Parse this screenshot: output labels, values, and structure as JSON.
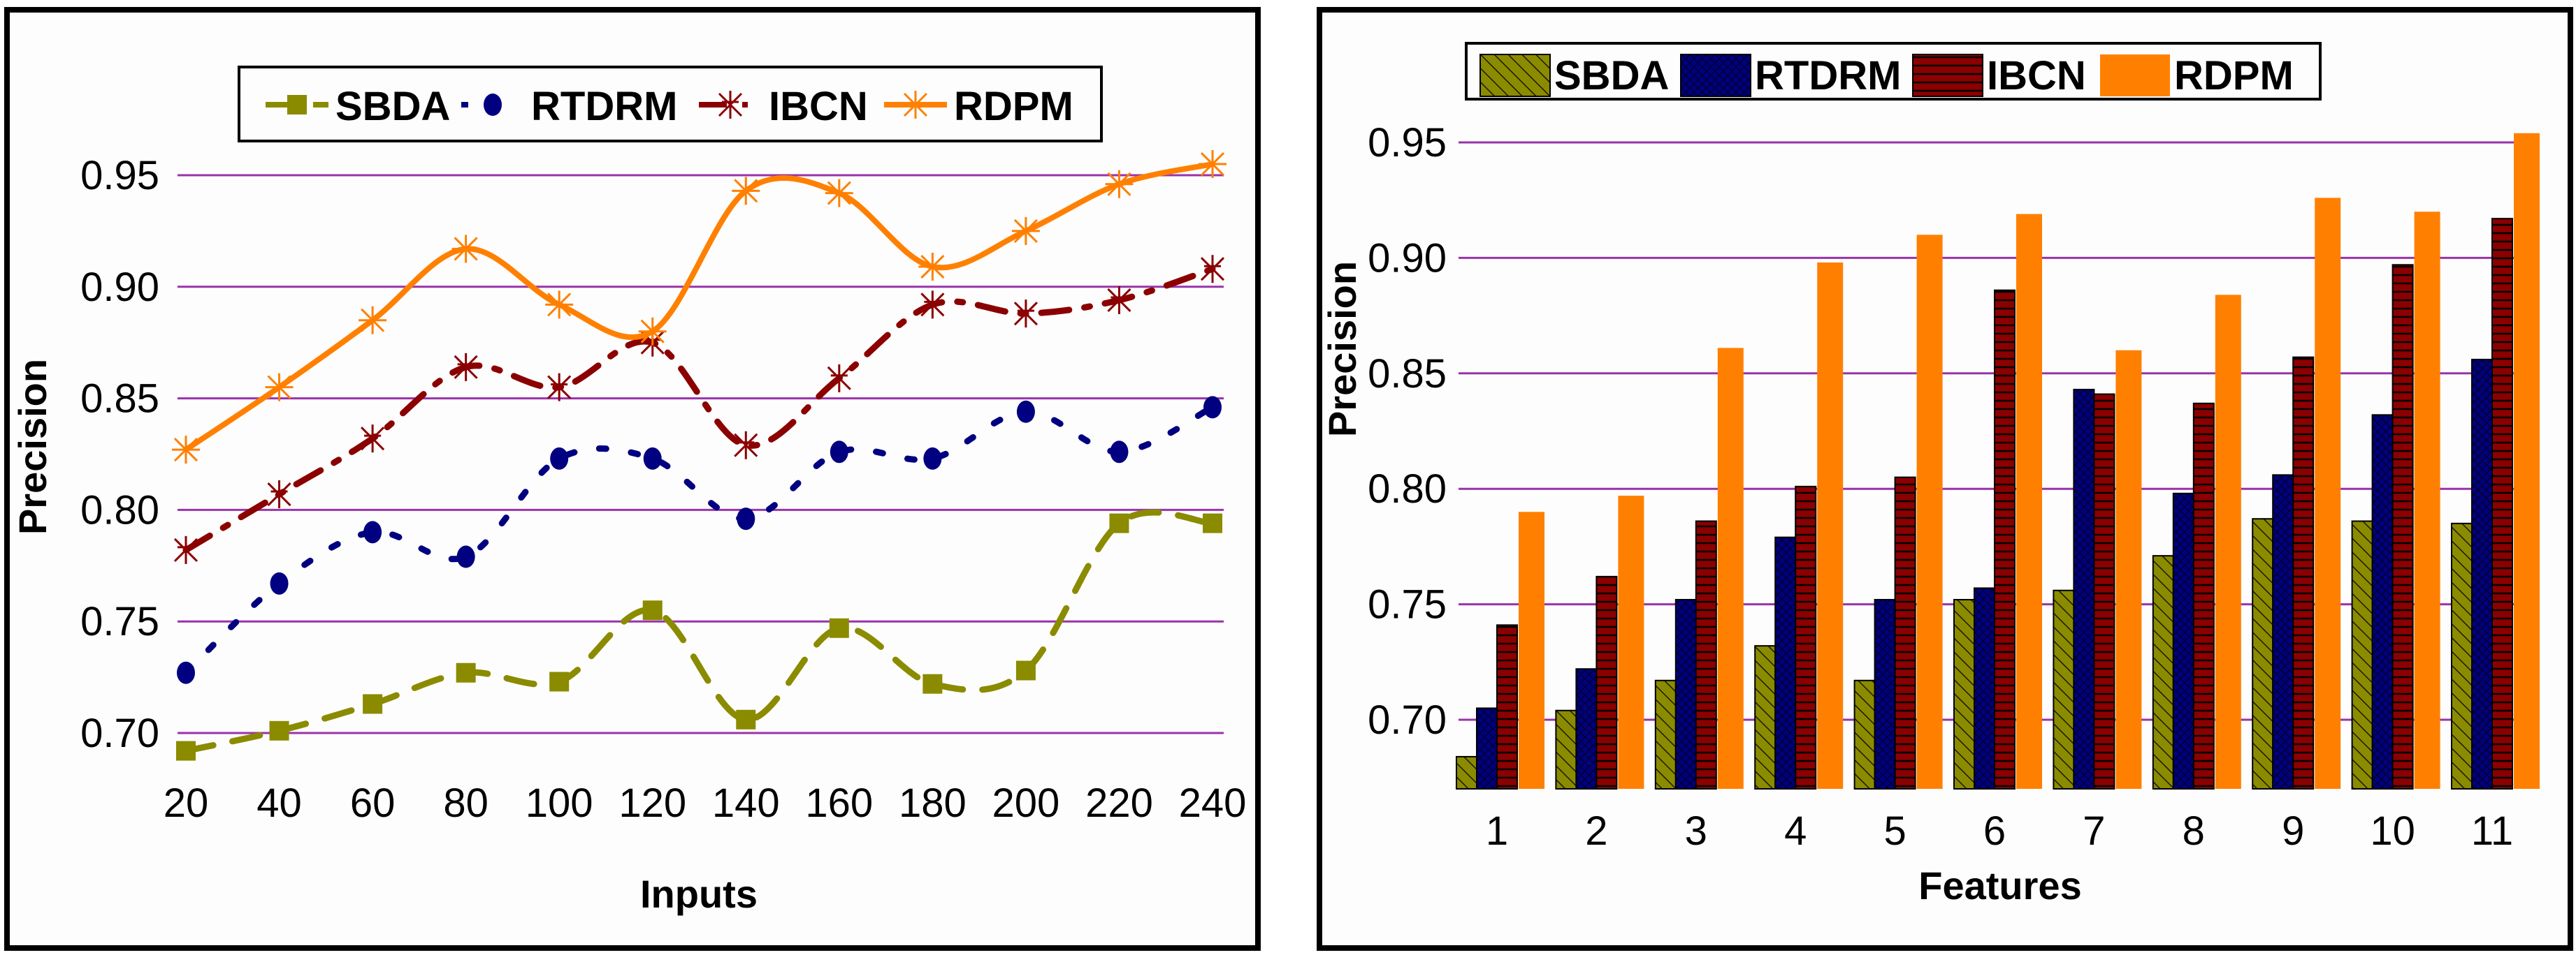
{
  "chart_data": [
    {
      "type": "line",
      "title": "",
      "xlabel": "Inputs",
      "ylabel": "Precision",
      "x": [
        20,
        40,
        60,
        80,
        100,
        120,
        140,
        160,
        180,
        200,
        220,
        240
      ],
      "x_tick_labels": [
        "20",
        "40",
        "60",
        "80",
        "100",
        "120",
        "140",
        "160",
        "180",
        "200",
        "220",
        "240"
      ],
      "ylim": [
        0.7,
        0.95
      ],
      "y_ticks": [
        0.7,
        0.75,
        0.8,
        0.85,
        0.9,
        0.95
      ],
      "y_tick_labels": [
        "0.70",
        "0.75",
        "0.80",
        "0.85",
        "0.90",
        "0.95"
      ],
      "grid": "horizontal",
      "legend_position": "top",
      "series": [
        {
          "name": "SBDA",
          "color": "#8B8B00",
          "marker": "square",
          "line": "dashed",
          "values": [
            0.692,
            0.701,
            0.713,
            0.727,
            0.723,
            0.755,
            0.706,
            0.747,
            0.722,
            0.728,
            0.794,
            0.794
          ]
        },
        {
          "name": "RTDRM",
          "color": "#000080",
          "marker": "circle",
          "line": "dotted",
          "values": [
            0.727,
            0.767,
            0.79,
            0.779,
            0.823,
            0.823,
            0.796,
            0.826,
            0.823,
            0.844,
            0.826,
            0.846
          ]
        },
        {
          "name": "IBCN",
          "color": "#8B0000",
          "marker": "cross-star",
          "line": "dash-dot",
          "values": [
            0.782,
            0.807,
            0.832,
            0.864,
            0.855,
            0.875,
            0.829,
            0.859,
            0.892,
            0.888,
            0.894,
            0.908
          ]
        },
        {
          "name": "RDPM",
          "color": "#FF8000",
          "marker": "asterisk",
          "line": "solid-smooth",
          "values": [
            0.827,
            0.855,
            0.885,
            0.917,
            0.892,
            0.88,
            0.943,
            0.942,
            0.909,
            0.925,
            0.946,
            0.955
          ]
        }
      ]
    },
    {
      "type": "bar",
      "title": "",
      "xlabel": "Features",
      "ylabel": "Precision",
      "categories": [
        "1",
        "2",
        "3",
        "4",
        "5",
        "6",
        "7",
        "8",
        "9",
        "10",
        "11"
      ],
      "ylim": [
        0.67,
        0.96
      ],
      "y_ticks": [
        0.7,
        0.75,
        0.8,
        0.85,
        0.9,
        0.95
      ],
      "y_tick_labels": [
        "0.70",
        "0.75",
        "0.80",
        "0.85",
        "0.90",
        "0.95"
      ],
      "grid": "horizontal",
      "legend_position": "top",
      "series": [
        {
          "name": "SBDA",
          "color": "#8B8B00",
          "pattern": "diagonal-hatch",
          "values": [
            0.684,
            0.704,
            0.717,
            0.732,
            0.717,
            0.752,
            0.756,
            0.771,
            0.787,
            0.786,
            0.785
          ]
        },
        {
          "name": "RTDRM",
          "color": "#000080",
          "pattern": "crosshatch",
          "values": [
            0.705,
            0.722,
            0.752,
            0.779,
            0.752,
            0.757,
            0.843,
            0.798,
            0.806,
            0.832,
            0.856
          ]
        },
        {
          "name": "IBCN",
          "color": "#8B0000",
          "pattern": "horizontal-lines",
          "values": [
            0.741,
            0.762,
            0.786,
            0.801,
            0.805,
            0.886,
            0.841,
            0.837,
            0.857,
            0.897,
            0.917
          ]
        },
        {
          "name": "RDPM",
          "color": "#FF8000",
          "pattern": "solid",
          "values": [
            0.79,
            0.797,
            0.861,
            0.898,
            0.91,
            0.919,
            0.86,
            0.884,
            0.926,
            0.92,
            0.954
          ]
        }
      ]
    }
  ],
  "colors": {
    "gridline": "#9933AA",
    "frame": "#000000"
  }
}
